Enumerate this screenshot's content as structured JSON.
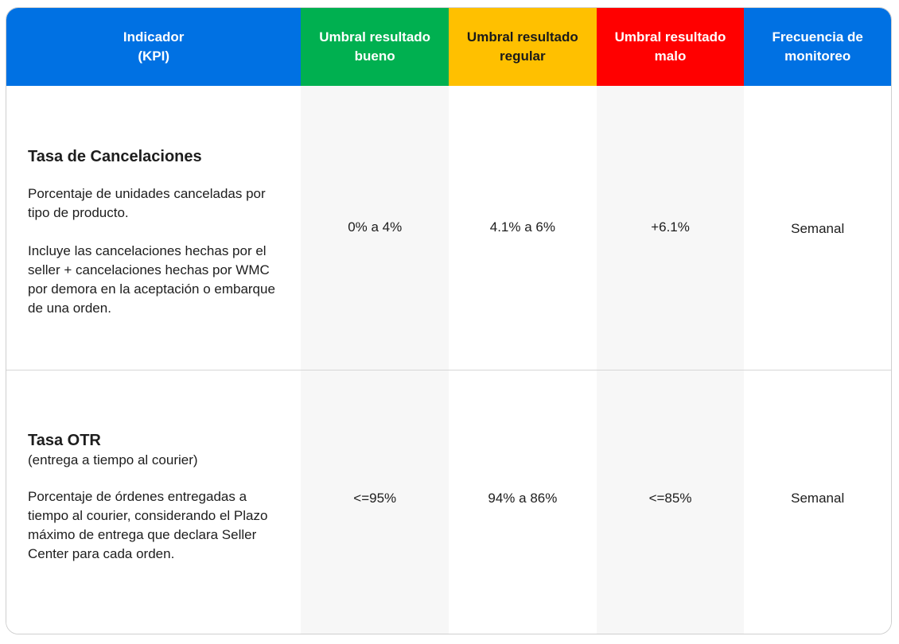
{
  "header": {
    "col_kpi": "Indicador\n(KPI)",
    "col_good": "Umbral resultado\nbueno",
    "col_regular": "Umbral resultado\nregular",
    "col_bad": "Umbral resultado\nmalo",
    "col_frequency": "Frecuencia de\nmonitoreo"
  },
  "colors": {
    "blue": "#0071e3",
    "green": "#00b050",
    "yellow": "#ffc000",
    "red": "#ff0000"
  },
  "rows": [
    {
      "title": "Tasa de Cancelaciones",
      "subtitle": "",
      "paragraph1": "Porcentaje de unidades canceladas por tipo de producto.",
      "paragraph2": "Incluye las cancelaciones hechas por el seller + cancelaciones hechas por WMC por demora en la aceptación o embarque de una orden.",
      "good": "0% a 4%",
      "regular": "4.1% a 6%",
      "bad": "+6.1%",
      "frequency": "Semanal"
    },
    {
      "title": "Tasa OTR",
      "subtitle": "(entrega a tiempo al courier)",
      "paragraph1": "Porcentaje de órdenes entregadas a tiempo al courier, considerando el Plazo máximo de entrega que declara Seller Center para cada orden.",
      "paragraph2": "",
      "good": "<=95%",
      "regular": "94% a 86%",
      "bad": "<=85%",
      "frequency": "Semanal"
    }
  ]
}
